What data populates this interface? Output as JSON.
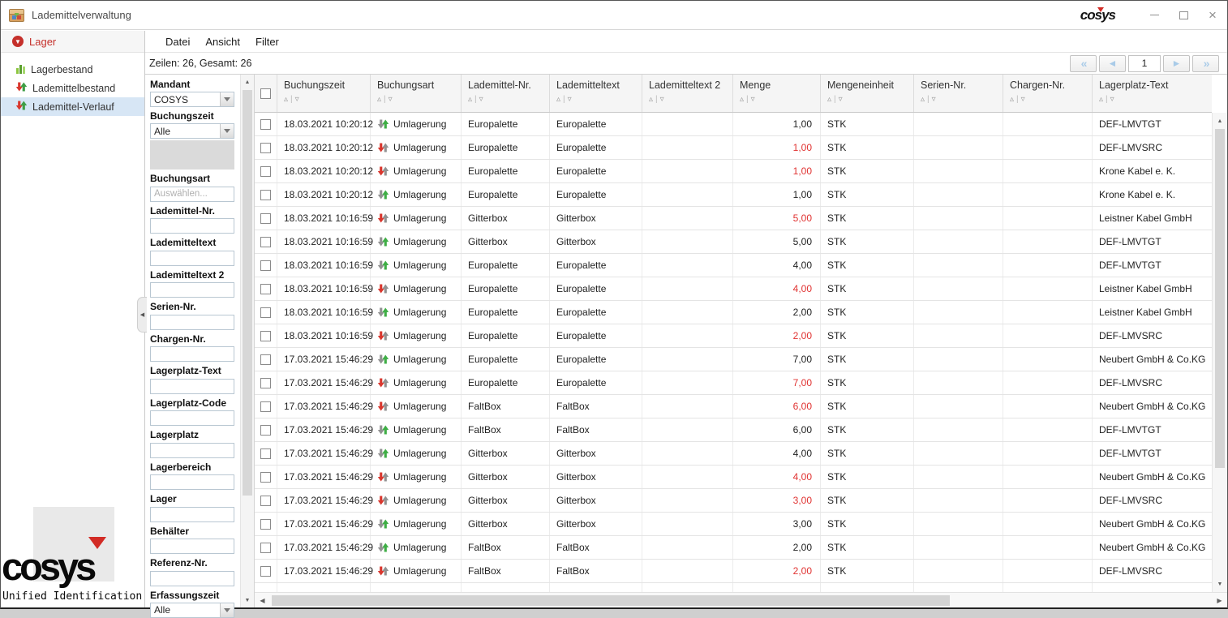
{
  "window": {
    "title": "Lademittelverwaltung",
    "brand": "COSYS"
  },
  "sidebar": {
    "header": {
      "label": "Lager"
    },
    "items": [
      {
        "label": "Lagerbestand",
        "icon": "bar-chart-icon",
        "selected": false
      },
      {
        "label": "Lademittelbestand",
        "icon": "transfer-arrows-icon",
        "selected": false
      },
      {
        "label": "Lademittel-Verlauf",
        "icon": "transfer-arrows-icon",
        "selected": true
      }
    ],
    "logo": {
      "text": "COSYS",
      "subtitle": "Unified Identification"
    }
  },
  "menubar": {
    "items": [
      "Datei",
      "Ansicht",
      "Filter"
    ]
  },
  "statusbar": {
    "rows_info": "Zeilen: 26, Gesamt: 26"
  },
  "pagination": {
    "first": "«",
    "prev": "◄",
    "page": "1",
    "next": "►",
    "last": "»"
  },
  "icons": {
    "sort_asc": "▵",
    "sort_sep": "|",
    "sort_desc": "▿",
    "scroll_up": "▲",
    "scroll_down": "▼",
    "scroll_left": "◀",
    "scroll_right": "▶",
    "collapse_left": "◀",
    "lager_badge": "▼"
  },
  "colors": {
    "accent_red": "#c5302b",
    "negative_qty": "#e03231",
    "arrow_green": "#3fae46",
    "arrow_red": "#d9372e",
    "arrow_gray": "#929292",
    "selected_row_bg": "#d7e6f5"
  },
  "filters": [
    {
      "label": "Mandant",
      "type": "select",
      "value": "COSYS"
    },
    {
      "label": "Buchungszeit",
      "type": "select",
      "value": "Alle",
      "gray_block": true
    },
    {
      "label": "Buchungsart",
      "type": "text",
      "placeholder": "Auswählen..."
    },
    {
      "label": "Lademittel-Nr.",
      "type": "text",
      "placeholder": ""
    },
    {
      "label": "Lademitteltext",
      "type": "text",
      "placeholder": ""
    },
    {
      "label": "Lademitteltext 2",
      "type": "text",
      "placeholder": ""
    },
    {
      "label": "Serien-Nr.",
      "type": "text",
      "placeholder": ""
    },
    {
      "label": "Chargen-Nr.",
      "type": "text",
      "placeholder": ""
    },
    {
      "label": "Lagerplatz-Text",
      "type": "text",
      "placeholder": ""
    },
    {
      "label": "Lagerplatz-Code",
      "type": "text",
      "placeholder": ""
    },
    {
      "label": "Lagerplatz",
      "type": "text",
      "placeholder": ""
    },
    {
      "label": "Lagerbereich",
      "type": "text",
      "placeholder": ""
    },
    {
      "label": "Lager",
      "type": "text",
      "placeholder": ""
    },
    {
      "label": "Behälter",
      "type": "text",
      "placeholder": ""
    },
    {
      "label": "Referenz-Nr.",
      "type": "text",
      "placeholder": ""
    },
    {
      "label": "Erfassungszeit",
      "type": "select",
      "value": "Alle"
    }
  ],
  "table": {
    "columns": [
      "Buchungszeit",
      "Buchungsart",
      "Lademittel-Nr.",
      "Lademitteltext",
      "Lademitteltext 2",
      "Menge",
      "Mengeneinheit",
      "Serien-Nr.",
      "Chargen-Nr.",
      "Lagerplatz-Text"
    ],
    "rows": [
      {
        "time": "18.03.2021 10:20:12",
        "art": "Umlagerung",
        "dir": "in",
        "nr": "Europalette",
        "text": "Europalette",
        "text2": "",
        "menge": "1,00",
        "neg": false,
        "unit": "STK",
        "serial": "",
        "charge": "",
        "place": "DEF-LMVTGT"
      },
      {
        "time": "18.03.2021 10:20:12",
        "art": "Umlagerung",
        "dir": "out",
        "nr": "Europalette",
        "text": "Europalette",
        "text2": "",
        "menge": "1,00",
        "neg": true,
        "unit": "STK",
        "serial": "",
        "charge": "",
        "place": "DEF-LMVSRC"
      },
      {
        "time": "18.03.2021 10:20:12",
        "art": "Umlagerung",
        "dir": "out",
        "nr": "Europalette",
        "text": "Europalette",
        "text2": "",
        "menge": "1,00",
        "neg": true,
        "unit": "STK",
        "serial": "",
        "charge": "",
        "place": "Krone Kabel e. K."
      },
      {
        "time": "18.03.2021 10:20:12",
        "art": "Umlagerung",
        "dir": "in",
        "nr": "Europalette",
        "text": "Europalette",
        "text2": "",
        "menge": "1,00",
        "neg": false,
        "unit": "STK",
        "serial": "",
        "charge": "",
        "place": "Krone Kabel e. K."
      },
      {
        "time": "18.03.2021 10:16:59",
        "art": "Umlagerung",
        "dir": "out",
        "nr": "Gitterbox",
        "text": "Gitterbox",
        "text2": "",
        "menge": "5,00",
        "neg": true,
        "unit": "STK",
        "serial": "",
        "charge": "",
        "place": "Leistner Kabel GmbH"
      },
      {
        "time": "18.03.2021 10:16:59",
        "art": "Umlagerung",
        "dir": "in",
        "nr": "Gitterbox",
        "text": "Gitterbox",
        "text2": "",
        "menge": "5,00",
        "neg": false,
        "unit": "STK",
        "serial": "",
        "charge": "",
        "place": "DEF-LMVTGT"
      },
      {
        "time": "18.03.2021 10:16:59",
        "art": "Umlagerung",
        "dir": "in",
        "nr": "Europalette",
        "text": "Europalette",
        "text2": "",
        "menge": "4,00",
        "neg": false,
        "unit": "STK",
        "serial": "",
        "charge": "",
        "place": "DEF-LMVTGT"
      },
      {
        "time": "18.03.2021 10:16:59",
        "art": "Umlagerung",
        "dir": "out",
        "nr": "Europalette",
        "text": "Europalette",
        "text2": "",
        "menge": "4,00",
        "neg": true,
        "unit": "STK",
        "serial": "",
        "charge": "",
        "place": "Leistner Kabel GmbH"
      },
      {
        "time": "18.03.2021 10:16:59",
        "art": "Umlagerung",
        "dir": "in",
        "nr": "Europalette",
        "text": "Europalette",
        "text2": "",
        "menge": "2,00",
        "neg": false,
        "unit": "STK",
        "serial": "",
        "charge": "",
        "place": "Leistner Kabel GmbH"
      },
      {
        "time": "18.03.2021 10:16:59",
        "art": "Umlagerung",
        "dir": "out",
        "nr": "Europalette",
        "text": "Europalette",
        "text2": "",
        "menge": "2,00",
        "neg": true,
        "unit": "STK",
        "serial": "",
        "charge": "",
        "place": "DEF-LMVSRC"
      },
      {
        "time": "17.03.2021 15:46:29",
        "art": "Umlagerung",
        "dir": "in",
        "nr": "Europalette",
        "text": "Europalette",
        "text2": "",
        "menge": "7,00",
        "neg": false,
        "unit": "STK",
        "serial": "",
        "charge": "",
        "place": "Neubert GmbH & Co.KG"
      },
      {
        "time": "17.03.2021 15:46:29",
        "art": "Umlagerung",
        "dir": "out",
        "nr": "Europalette",
        "text": "Europalette",
        "text2": "",
        "menge": "7,00",
        "neg": true,
        "unit": "STK",
        "serial": "",
        "charge": "",
        "place": "DEF-LMVSRC"
      },
      {
        "time": "17.03.2021 15:46:29",
        "art": "Umlagerung",
        "dir": "out",
        "nr": "FaltBox",
        "text": "FaltBox",
        "text2": "",
        "menge": "6,00",
        "neg": true,
        "unit": "STK",
        "serial": "",
        "charge": "",
        "place": "Neubert GmbH & Co.KG"
      },
      {
        "time": "17.03.2021 15:46:29",
        "art": "Umlagerung",
        "dir": "in",
        "nr": "FaltBox",
        "text": "FaltBox",
        "text2": "",
        "menge": "6,00",
        "neg": false,
        "unit": "STK",
        "serial": "",
        "charge": "",
        "place": "DEF-LMVTGT"
      },
      {
        "time": "17.03.2021 15:46:29",
        "art": "Umlagerung",
        "dir": "in",
        "nr": "Gitterbox",
        "text": "Gitterbox",
        "text2": "",
        "menge": "4,00",
        "neg": false,
        "unit": "STK",
        "serial": "",
        "charge": "",
        "place": "DEF-LMVTGT"
      },
      {
        "time": "17.03.2021 15:46:29",
        "art": "Umlagerung",
        "dir": "out",
        "nr": "Gitterbox",
        "text": "Gitterbox",
        "text2": "",
        "menge": "4,00",
        "neg": true,
        "unit": "STK",
        "serial": "",
        "charge": "",
        "place": "Neubert GmbH & Co.KG"
      },
      {
        "time": "17.03.2021 15:46:29",
        "art": "Umlagerung",
        "dir": "out",
        "nr": "Gitterbox",
        "text": "Gitterbox",
        "text2": "",
        "menge": "3,00",
        "neg": true,
        "unit": "STK",
        "serial": "",
        "charge": "",
        "place": "DEF-LMVSRC"
      },
      {
        "time": "17.03.2021 15:46:29",
        "art": "Umlagerung",
        "dir": "in",
        "nr": "Gitterbox",
        "text": "Gitterbox",
        "text2": "",
        "menge": "3,00",
        "neg": false,
        "unit": "STK",
        "serial": "",
        "charge": "",
        "place": "Neubert GmbH & Co.KG"
      },
      {
        "time": "17.03.2021 15:46:29",
        "art": "Umlagerung",
        "dir": "in",
        "nr": "FaltBox",
        "text": "FaltBox",
        "text2": "",
        "menge": "2,00",
        "neg": false,
        "unit": "STK",
        "serial": "",
        "charge": "",
        "place": "Neubert GmbH & Co.KG"
      },
      {
        "time": "17.03.2021 15:46:29",
        "art": "Umlagerung",
        "dir": "out",
        "nr": "FaltBox",
        "text": "FaltBox",
        "text2": "",
        "menge": "2,00",
        "neg": true,
        "unit": "STK",
        "serial": "",
        "charge": "",
        "place": "DEF-LMVSRC"
      }
    ]
  }
}
